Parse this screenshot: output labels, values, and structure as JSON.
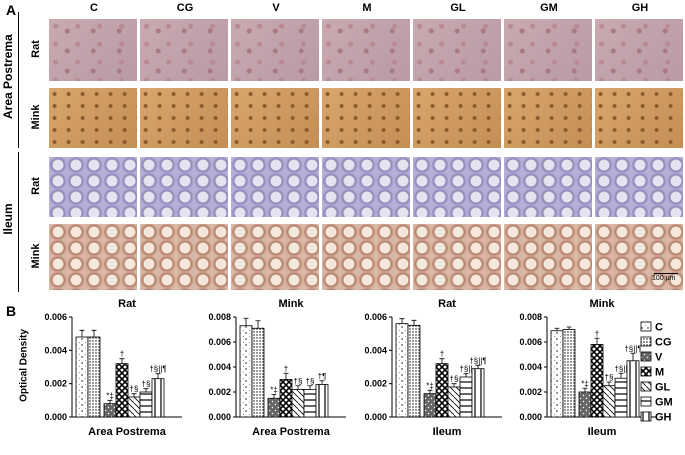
{
  "panel_a_label": "A",
  "panel_b_label": "B",
  "columns": [
    "C",
    "CG",
    "V",
    "M",
    "GL",
    "GM",
    "GH"
  ],
  "groups": {
    "area_postrema": "Area Postrema",
    "ileum": "Ileum"
  },
  "rows": [
    "Rat",
    "Mink",
    "Rat",
    "Mink"
  ],
  "scale_bar": "100 μm",
  "ylabel": "Optical Density",
  "legend": [
    "C",
    "CG",
    "V",
    "M",
    "GL",
    "GM",
    "GH"
  ],
  "chart_data": [
    {
      "type": "bar",
      "title": "Rat",
      "xlabel": "Area Postrema",
      "ylim": [
        0,
        0.006
      ],
      "yticks": [
        "0.000",
        "0.002",
        "0.004",
        "0.006"
      ],
      "categories": [
        "C",
        "CG",
        "V",
        "M",
        "GL",
        "GM",
        "GH"
      ],
      "values": [
        0.0048,
        0.0048,
        0.0008,
        0.0032,
        0.0012,
        0.0015,
        0.0023
      ],
      "errors": [
        0.0004,
        0.0004,
        0.0002,
        0.0003,
        0.0002,
        0.0002,
        0.0003
      ],
      "annotations": [
        "",
        "",
        "*‡",
        "†",
        "†§",
        "†§",
        "†§||¶"
      ]
    },
    {
      "type": "bar",
      "title": "Mink",
      "xlabel": "Area Postrema",
      "ylim": [
        0,
        0.008
      ],
      "yticks": [
        "0.000",
        "0.002",
        "0.004",
        "0.006",
        "0.008"
      ],
      "categories": [
        "C",
        "CG",
        "V",
        "M",
        "GL",
        "GM",
        "GH"
      ],
      "values": [
        0.0073,
        0.0071,
        0.0015,
        0.003,
        0.0022,
        0.0022,
        0.0026
      ],
      "errors": [
        0.0006,
        0.0006,
        0.0003,
        0.0005,
        0.0003,
        0.0003,
        0.0003
      ],
      "annotations": [
        "",
        "",
        "*‡",
        "†",
        "†§",
        "†§",
        "†¶"
      ]
    },
    {
      "type": "bar",
      "title": "Rat",
      "xlabel": "Ileum",
      "ylim": [
        0,
        0.006
      ],
      "yticks": [
        "0.000",
        "0.002",
        "0.004",
        "0.006"
      ],
      "categories": [
        "C",
        "CG",
        "V",
        "M",
        "GL",
        "GM",
        "GH"
      ],
      "values": [
        0.0056,
        0.0055,
        0.0014,
        0.0032,
        0.0018,
        0.0024,
        0.0029
      ],
      "errors": [
        0.0003,
        0.0003,
        0.0002,
        0.0003,
        0.0002,
        0.0002,
        0.0002
      ],
      "annotations": [
        "",
        "",
        "*‡",
        "†",
        "†§",
        "†§||",
        "†§||¶"
      ]
    },
    {
      "type": "bar",
      "title": "Mink",
      "xlabel": "Ileum",
      "ylim": [
        0,
        0.008
      ],
      "yticks": [
        "0.000",
        "0.002",
        "0.004",
        "0.006",
        "0.008"
      ],
      "categories": [
        "C",
        "CG",
        "V",
        "M",
        "GL",
        "GM",
        "GH"
      ],
      "values": [
        0.0069,
        0.007,
        0.002,
        0.0058,
        0.0025,
        0.0031,
        0.0045
      ],
      "errors": [
        0.0002,
        0.0002,
        0.0003,
        0.0005,
        0.0003,
        0.0004,
        0.0006
      ],
      "annotations": [
        "",
        "",
        "*‡",
        "†",
        "†§",
        "†§||",
        "†§||¶"
      ]
    }
  ]
}
